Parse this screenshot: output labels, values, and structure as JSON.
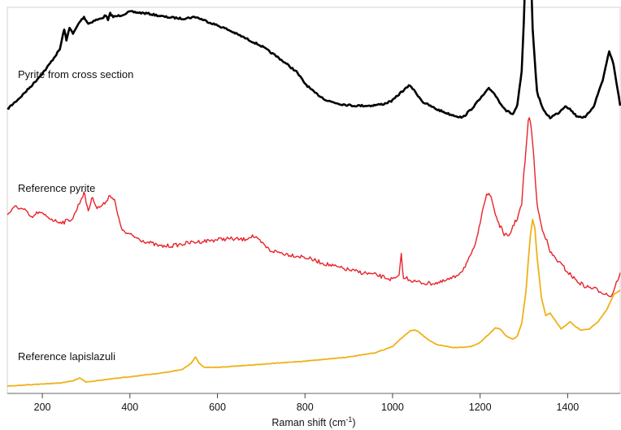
{
  "chart_data": {
    "type": "line",
    "xlabel": "Raman shift (cm",
    "xlabel_superscript": "-1",
    "xlabel_suffix": ")",
    "xlim": [
      120,
      1520
    ],
    "x_ticks": [
      200,
      400,
      600,
      800,
      1000,
      1200,
      1400
    ],
    "tick_labels": [
      "200",
      "400",
      "600",
      "800",
      "1000",
      "1200",
      "1400"
    ],
    "grid": false,
    "y_axis_shown": false,
    "series": [
      {
        "name": "Pyrite from cross section",
        "color": "#000000",
        "x": [
          120,
          150,
          180,
          210,
          240,
          250,
          255,
          262,
          270,
          285,
          295,
          305,
          320,
          335,
          345,
          350,
          355,
          362,
          380,
          400,
          440,
          480,
          520,
          550,
          580,
          620,
          660,
          700,
          740,
          780,
          800,
          820,
          850,
          880,
          910,
          950,
          980,
          1000,
          1020,
          1040,
          1055,
          1070,
          1100,
          1130,
          1160,
          1180,
          1200,
          1220,
          1230,
          1245,
          1260,
          1275,
          1285,
          1295,
          1300,
          1305,
          1310,
          1315,
          1320,
          1330,
          1345,
          1360,
          1380,
          1395,
          1405,
          1420,
          1440,
          1460,
          1480,
          1495,
          1505,
          1520
        ],
        "y": [
          0.18,
          0.25,
          0.33,
          0.42,
          0.53,
          0.65,
          0.58,
          0.66,
          0.62,
          0.69,
          0.72,
          0.68,
          0.7,
          0.71,
          0.73,
          0.7,
          0.74,
          0.72,
          0.73,
          0.75,
          0.74,
          0.72,
          0.71,
          0.72,
          0.69,
          0.65,
          0.6,
          0.55,
          0.48,
          0.4,
          0.33,
          0.28,
          0.23,
          0.21,
          0.2,
          0.2,
          0.21,
          0.23,
          0.28,
          0.32,
          0.27,
          0.22,
          0.18,
          0.15,
          0.13,
          0.18,
          0.24,
          0.3,
          0.28,
          0.22,
          0.17,
          0.15,
          0.2,
          0.4,
          0.7,
          1.12,
          1.25,
          1.1,
          0.65,
          0.28,
          0.17,
          0.13,
          0.16,
          0.2,
          0.18,
          0.14,
          0.13,
          0.2,
          0.35,
          0.52,
          0.44,
          0.2
        ]
      },
      {
        "name": "Reference pyrite",
        "color": "#e8232a",
        "x": [
          120,
          140,
          160,
          175,
          190,
          210,
          230,
          250,
          270,
          285,
          295,
          305,
          315,
          325,
          340,
          355,
          365,
          375,
          385,
          400,
          430,
          470,
          500,
          540,
          580,
          620,
          660,
          680,
          700,
          720,
          760,
          800,
          840,
          880,
          920,
          960,
          1000,
          1015,
          1020,
          1025,
          1030,
          1050,
          1080,
          1110,
          1140,
          1160,
          1180,
          1195,
          1205,
          1215,
          1225,
          1235,
          1245,
          1255,
          1265,
          1275,
          1285,
          1295,
          1300,
          1305,
          1310,
          1315,
          1320,
          1325,
          1330,
          1340,
          1350,
          1360,
          1380,
          1400,
          1420,
          1440,
          1460,
          1480,
          1500,
          1520
        ],
        "y": [
          0.62,
          0.7,
          0.66,
          0.58,
          0.64,
          0.6,
          0.55,
          0.54,
          0.58,
          0.74,
          0.84,
          0.66,
          0.8,
          0.68,
          0.72,
          0.82,
          0.76,
          0.56,
          0.44,
          0.41,
          0.35,
          0.29,
          0.3,
          0.33,
          0.35,
          0.37,
          0.36,
          0.4,
          0.33,
          0.25,
          0.21,
          0.18,
          0.12,
          0.07,
          0.03,
          0.0,
          -0.05,
          -0.02,
          0.22,
          -0.05,
          -0.03,
          -0.07,
          -0.09,
          -0.08,
          -0.03,
          0.05,
          0.2,
          0.4,
          0.67,
          0.83,
          0.8,
          0.62,
          0.5,
          0.42,
          0.38,
          0.5,
          0.58,
          0.72,
          1.04,
          1.28,
          1.6,
          1.58,
          1.35,
          1.06,
          0.72,
          0.5,
          0.38,
          0.23,
          0.13,
          0.03,
          -0.06,
          -0.12,
          -0.14,
          -0.18,
          -0.22,
          0.02
        ]
      },
      {
        "name": "Reference lapislazuli",
        "color": "#efb117",
        "x": [
          120,
          160,
          200,
          240,
          270,
          285,
          300,
          320,
          360,
          400,
          440,
          480,
          520,
          540,
          550,
          558,
          570,
          600,
          700,
          800,
          900,
          960,
          1000,
          1020,
          1040,
          1050,
          1060,
          1080,
          1100,
          1140,
          1180,
          1200,
          1220,
          1235,
          1245,
          1260,
          1275,
          1285,
          1295,
          1305,
          1310,
          1315,
          1320,
          1325,
          1330,
          1340,
          1350,
          1360,
          1370,
          1385,
          1395,
          1405,
          1415,
          1430,
          1450,
          1470,
          1490,
          1505,
          1520
        ],
        "y": [
          0.0,
          0.01,
          0.02,
          0.03,
          0.05,
          0.08,
          0.04,
          0.05,
          0.07,
          0.09,
          0.11,
          0.13,
          0.16,
          0.22,
          0.28,
          0.22,
          0.18,
          0.18,
          0.21,
          0.24,
          0.28,
          0.32,
          0.38,
          0.46,
          0.53,
          0.54,
          0.52,
          0.45,
          0.4,
          0.37,
          0.38,
          0.42,
          0.5,
          0.56,
          0.55,
          0.48,
          0.45,
          0.48,
          0.6,
          0.92,
          1.2,
          1.45,
          1.6,
          1.52,
          1.25,
          0.85,
          0.68,
          0.7,
          0.64,
          0.55,
          0.58,
          0.62,
          0.58,
          0.54,
          0.55,
          0.62,
          0.74,
          0.88,
          0.92
        ]
      }
    ]
  }
}
